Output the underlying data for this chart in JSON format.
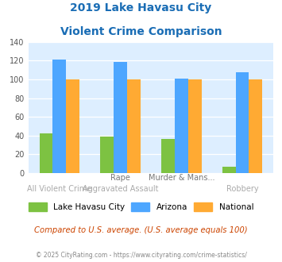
{
  "title_line1": "2019 Lake Havasu City",
  "title_line2": "Violent Crime Comparison",
  "cat_labels_top": [
    "",
    "Rape",
    "Murder & Mans...",
    ""
  ],
  "cat_labels_bottom": [
    "All Violent Crime",
    "Aggravated Assault",
    "",
    "Robbery"
  ],
  "series": {
    "Lake Havasu City": [
      42,
      39,
      36,
      7
    ],
    "Arizona": [
      121,
      119,
      101,
      108
    ],
    "National": [
      100,
      100,
      100,
      100
    ]
  },
  "colors": {
    "Lake Havasu City": "#7dc242",
    "Arizona": "#4da6ff",
    "National": "#ffaa33"
  },
  "ylim": [
    0,
    140
  ],
  "yticks": [
    0,
    20,
    40,
    60,
    80,
    100,
    120,
    140
  ],
  "title_color": "#1a6db5",
  "plot_bg": "#ddeeff",
  "footer_text": "Compared to U.S. average. (U.S. average equals 100)",
  "footer_color": "#cc4400",
  "copyright_text": "© 2025 CityRating.com - https://www.cityrating.com/crime-statistics/",
  "copyright_color": "#888888"
}
